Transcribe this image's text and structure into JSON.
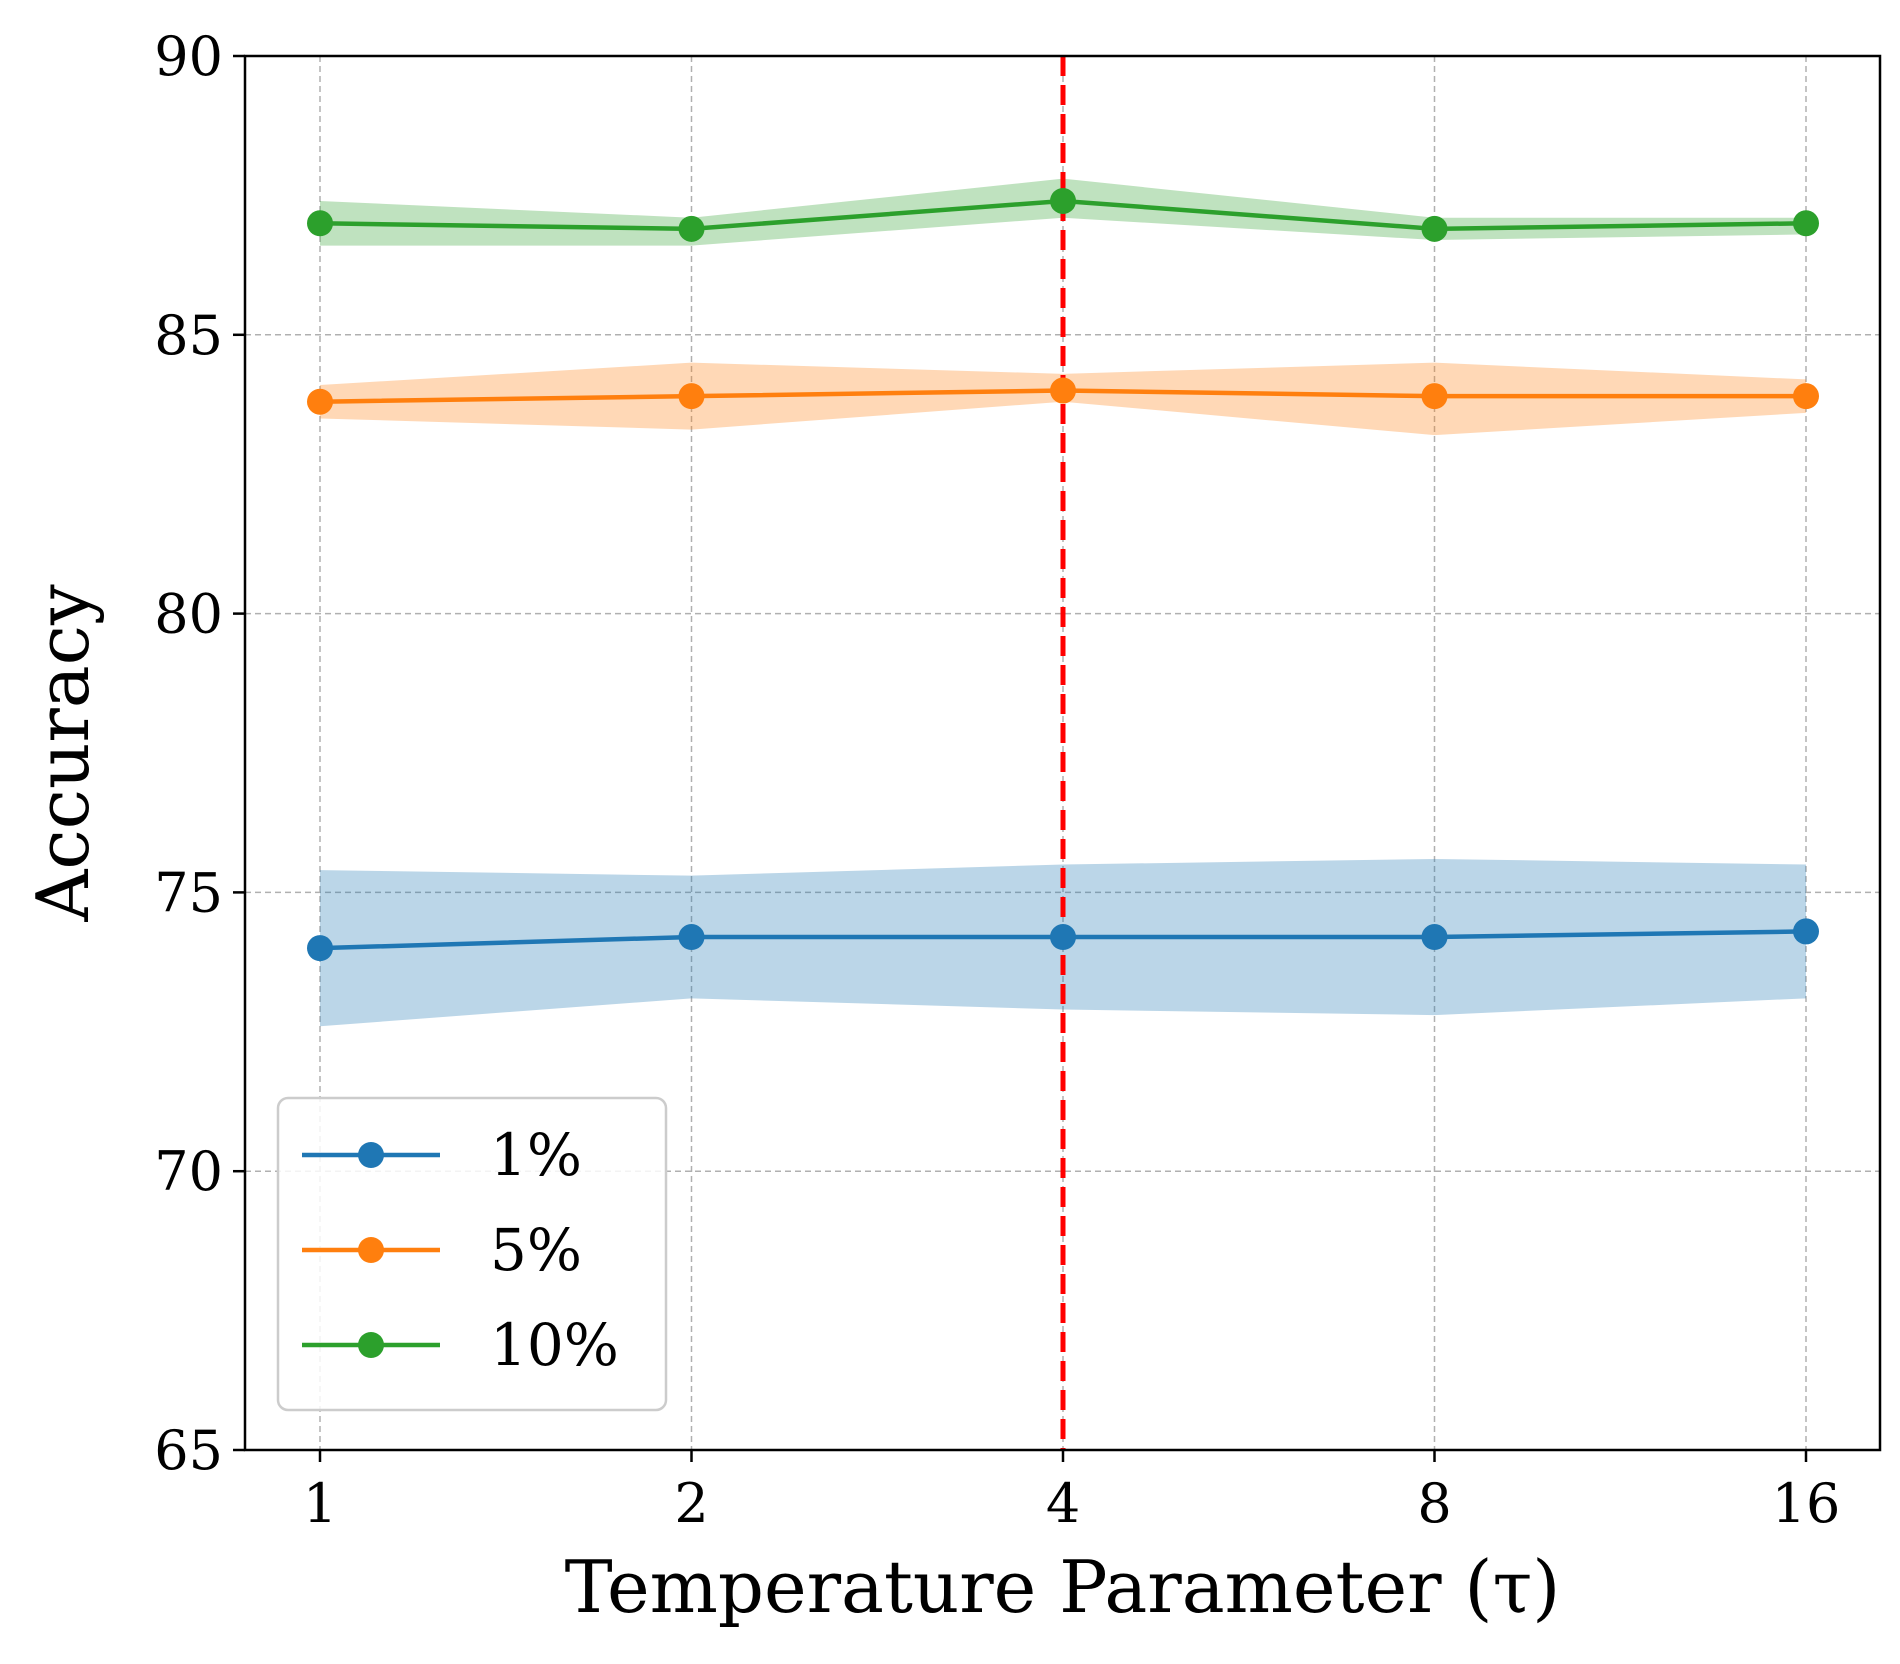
{
  "chart_data": {
    "type": "line",
    "title": "",
    "xlabel": "Temperature Parameter (τ)",
    "ylabel": "Accuracy",
    "x_categories": [
      "1",
      "2",
      "4",
      "8",
      "16"
    ],
    "ylim": [
      65,
      90
    ],
    "yticks": [
      "65",
      "70",
      "75",
      "80",
      "85",
      "90"
    ],
    "grid": true,
    "legend_position": "lower-left",
    "reference_line": {
      "x": "4",
      "style": "dashed",
      "color": "#ff0000"
    },
    "series": [
      {
        "name": "1%",
        "color": "#1f77b4",
        "values": [
          74.0,
          74.2,
          74.2,
          74.2,
          74.3
        ],
        "lower": [
          72.6,
          73.1,
          72.9,
          72.8,
          73.1
        ],
        "upper": [
          75.4,
          75.3,
          75.5,
          75.6,
          75.5
        ]
      },
      {
        "name": "5%",
        "color": "#ff7f0e",
        "values": [
          83.8,
          83.9,
          84.0,
          83.9,
          83.9
        ],
        "lower": [
          83.5,
          83.3,
          83.8,
          83.2,
          83.6
        ],
        "upper": [
          84.1,
          84.5,
          84.3,
          84.5,
          84.2
        ]
      },
      {
        "name": "10%",
        "color": "#2ca02c",
        "values": [
          87.0,
          86.9,
          87.4,
          86.9,
          87.0
        ],
        "lower": [
          86.6,
          86.6,
          87.1,
          86.7,
          86.8
        ],
        "upper": [
          87.4,
          87.1,
          87.8,
          87.1,
          87.1
        ]
      }
    ]
  }
}
